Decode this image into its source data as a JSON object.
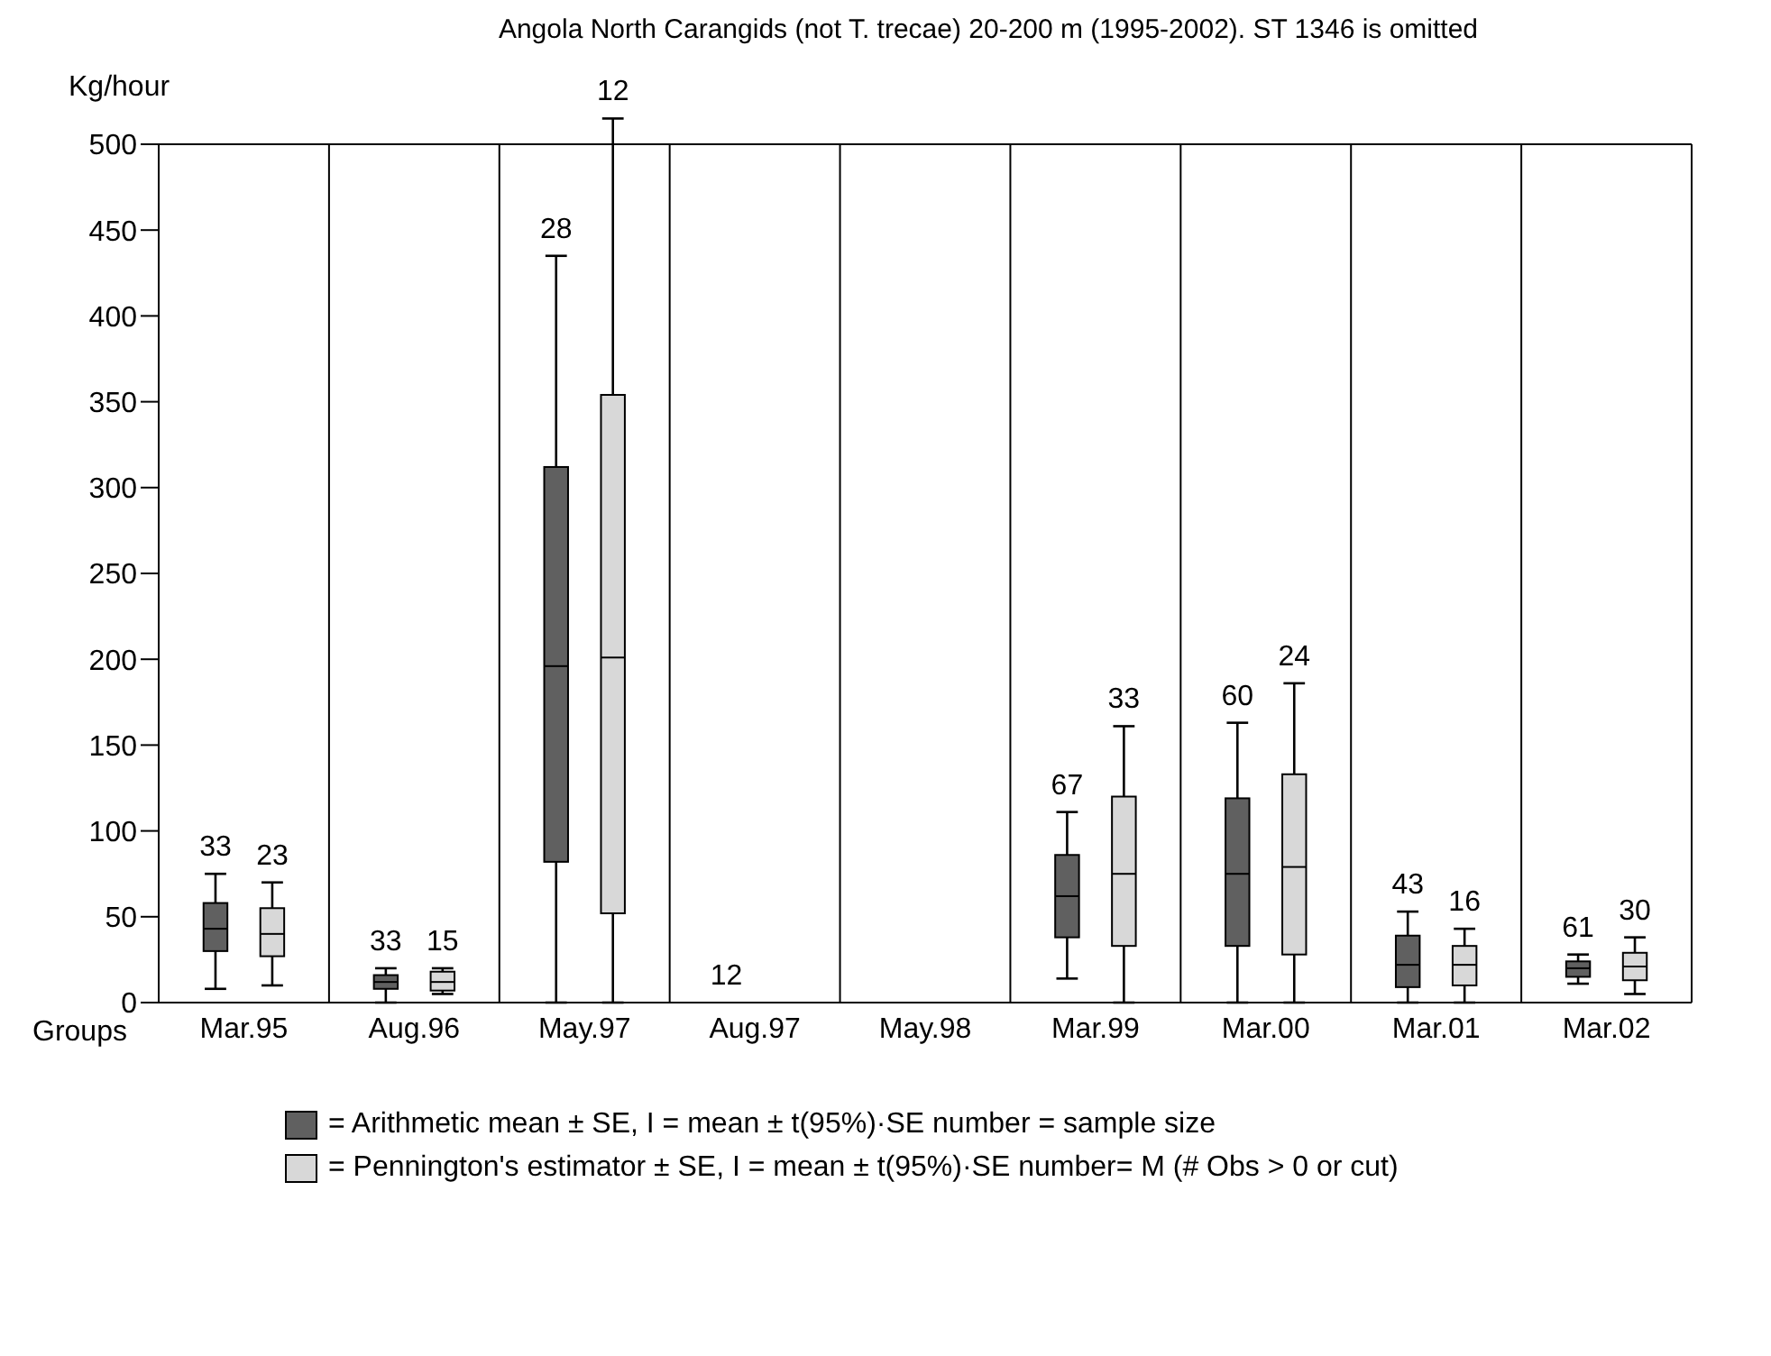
{
  "chart_data": {
    "type": "box",
    "title": "Angola North Carangids (not T. trecae) 20-200 m (1995-2002). ST 1346 is omitted",
    "xlabel": "Groups",
    "ylabel": "Kg/hour",
    "categories": [
      "Mar.95",
      "Aug.96",
      "May.97",
      "Aug.97",
      "May.98",
      "Mar.99",
      "Mar.00",
      "Mar.01",
      "Mar.02"
    ],
    "ylim": [
      0,
      500
    ],
    "yticks": [
      0,
      50,
      100,
      150,
      200,
      250,
      300,
      350,
      400,
      450,
      500
    ],
    "grid": "x",
    "legend": "bottom",
    "series": [
      {
        "name": "= Arithmetic mean  ± SE, I = mean ± t(95%)·SE   number = sample size",
        "color": "#606060",
        "value_labels": [
          "33",
          "33",
          "28",
          "12",
          null,
          "67",
          "60",
          "43",
          "61"
        ],
        "boxes": [
          {
            "low": 8,
            "q1": 30,
            "median": 43,
            "q3": 58,
            "high": 75
          },
          {
            "low": 0,
            "q1": 8,
            "median": 12,
            "q3": 16,
            "high": 20
          },
          {
            "low": 0,
            "q1": 82,
            "median": 196,
            "q3": 312,
            "high": 435
          },
          null,
          null,
          {
            "low": 14,
            "q1": 38,
            "median": 62,
            "q3": 86,
            "high": 111
          },
          {
            "low": 0,
            "q1": 33,
            "median": 75,
            "q3": 119,
            "high": 163
          },
          {
            "low": 0,
            "q1": 9,
            "median": 22,
            "q3": 39,
            "high": 53
          },
          {
            "low": 11,
            "q1": 15,
            "median": 20,
            "q3": 24,
            "high": 28
          }
        ]
      },
      {
        "name": "= Pennington's estimator  ± SE, I = mean ± t(95%)·SE   number= M (# Obs > 0 or cut)",
        "color": "#d8d8d8",
        "value_labels": [
          "23",
          "15",
          "12",
          null,
          null,
          "33",
          "24",
          "16",
          "30"
        ],
        "boxes": [
          {
            "low": 10,
            "q1": 27,
            "median": 40,
            "q3": 55,
            "high": 70
          },
          {
            "low": 5,
            "q1": 7,
            "median": 12,
            "q3": 18,
            "high": 20
          },
          {
            "low": 0,
            "q1": 52,
            "median": 201,
            "q3": 354,
            "high": 515
          },
          null,
          null,
          {
            "low": 0,
            "q1": 33,
            "median": 75,
            "q3": 120,
            "high": 161
          },
          {
            "low": 0,
            "q1": 28,
            "median": 79,
            "q3": 133,
            "high": 186
          },
          {
            "low": 0,
            "q1": 10,
            "median": 22,
            "q3": 33,
            "high": 43
          },
          {
            "low": 5,
            "q1": 13,
            "median": 21,
            "q3": 29,
            "high": 38
          }
        ]
      }
    ]
  }
}
